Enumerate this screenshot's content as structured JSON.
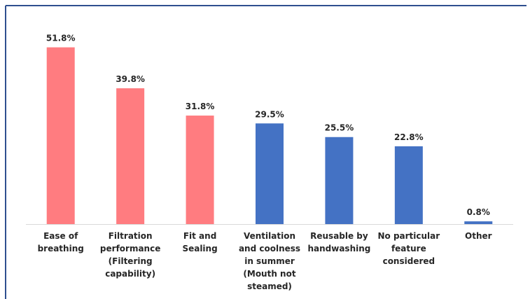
{
  "chart_data": {
    "type": "bar",
    "categories": [
      "Ease of breathing",
      "Filtration performance (Filtering capability)",
      "Fit and Sealing",
      "Ventilation and coolness in summer (Mouth not steamed)",
      "Reusable by handwashing",
      "No particular feature considered",
      "Other"
    ],
    "values": [
      51.8,
      39.8,
      31.8,
      29.5,
      25.5,
      22.8,
      0.8
    ],
    "value_labels": [
      "51.8%",
      "39.8%",
      "31.8%",
      "29.5%",
      "25.5%",
      "22.8%",
      "0.8%"
    ],
    "colors": [
      "#ff7c80",
      "#ff7c80",
      "#ff7c80",
      "#4472c4",
      "#4472c4",
      "#4472c4",
      "#4472c4"
    ],
    "ylim": [
      0,
      55
    ]
  }
}
